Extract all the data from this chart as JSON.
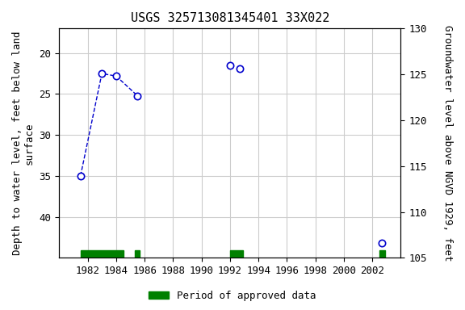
{
  "title": "USGS 325713081345401 33X022",
  "ylabel_left": "Depth to water level, feet below land\nsurface",
  "ylabel_right": "Groundwater level above NGVD 1929, feet",
  "xlim": [
    1980,
    2004
  ],
  "ylim_left_top": 17,
  "ylim_left_bottom": 45,
  "ylim_right_top": 130,
  "ylim_right_bottom": 105,
  "yticks_left": [
    20,
    25,
    30,
    35,
    40
  ],
  "yticks_right": [
    105,
    110,
    115,
    120,
    125,
    130
  ],
  "xticks": [
    1982,
    1984,
    1986,
    1988,
    1990,
    1992,
    1994,
    1996,
    1998,
    2000,
    2002
  ],
  "data_x": [
    1981.5,
    1983.0,
    1984.0,
    1985.5,
    1992.0,
    1992.7,
    2002.7
  ],
  "data_y": [
    35.0,
    22.5,
    22.8,
    25.2,
    21.5,
    21.9,
    43.2
  ],
  "connected_indices": [
    0,
    1,
    2,
    3
  ],
  "point_color": "#0000cc",
  "line_color": "#0000cc",
  "green_bars": [
    {
      "x_start": 1981.5,
      "x_end": 1984.5
    },
    {
      "x_start": 1985.3,
      "x_end": 1985.65
    },
    {
      "x_start": 1992.0,
      "x_end": 1992.9
    },
    {
      "x_start": 2002.5,
      "x_end": 2002.9
    }
  ],
  "green_color": "#008000",
  "background_color": "#ffffff",
  "grid_color": "#cccccc",
  "title_fontsize": 11,
  "label_fontsize": 9,
  "tick_fontsize": 9
}
